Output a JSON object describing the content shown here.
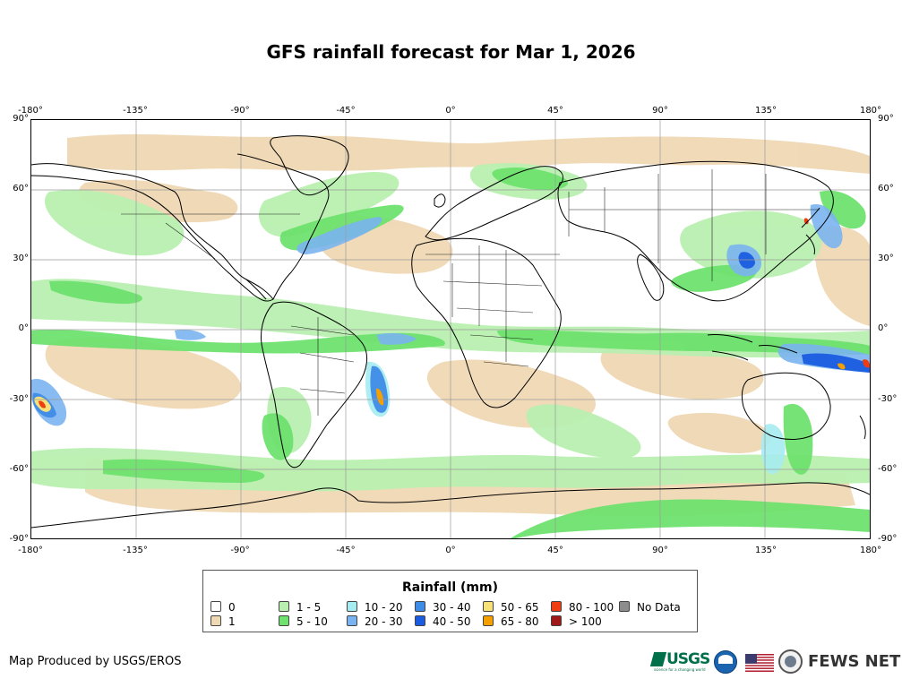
{
  "title": "GFS rainfall forecast for Mar 1, 2026",
  "lon_labels": [
    "-180°",
    "-135°",
    "-90°",
    "-45°",
    "0°",
    "45°",
    "90°",
    "135°",
    "180°"
  ],
  "lat_labels": [
    "90°",
    "60°",
    "30°",
    "0°",
    "-30°",
    "-60°",
    "-90°"
  ],
  "legend": {
    "title": "Rainfall (mm)",
    "items": [
      {
        "label": "0",
        "color": "#ffffff"
      },
      {
        "label": "1",
        "color": "#efd8b4"
      },
      {
        "label": "1 - 5",
        "color": "#b9f0b0"
      },
      {
        "label": "5 - 10",
        "color": "#6ee26e"
      },
      {
        "label": "10 - 20",
        "color": "#a6ecf0"
      },
      {
        "label": "20 - 30",
        "color": "#7ab4f0"
      },
      {
        "label": "30 - 40",
        "color": "#3f8ce6"
      },
      {
        "label": "40 - 50",
        "color": "#1a5ce0"
      },
      {
        "label": "50 - 65",
        "color": "#f7e27a"
      },
      {
        "label": "65 - 80",
        "color": "#f5a000"
      },
      {
        "label": "80 - 100",
        "color": "#ef3c10"
      },
      {
        "label": "> 100",
        "color": "#a01818"
      },
      {
        "label": "No Data",
        "color": "#8c8c8c"
      }
    ]
  },
  "credit": "Map Produced by USGS/EROS",
  "logos": {
    "usgs": "USGS",
    "usgs_tagline": "science for a changing world",
    "fews": "FEWS NET",
    "noaa_icon": "noaa-logo-icon",
    "flag_icon": "us-flag-icon",
    "seal_icon": "state-department-seal-icon"
  },
  "map_features": {
    "ocean_color": "#ffffff",
    "rain_bands": [
      {
        "name": "ITCZ Pacific",
        "color": "#6ee26e"
      },
      {
        "name": "South Atlantic convergence",
        "color": "#3f8ce6"
      },
      {
        "name": "Southern Ocean storm track",
        "color": "#b9f0b0"
      },
      {
        "name": "North Pacific storm track",
        "color": "#6ee26e"
      },
      {
        "name": "North Atlantic storm track",
        "color": "#7ab4f0"
      },
      {
        "name": "Maritime Continent",
        "color": "#1a5ce0"
      }
    ]
  }
}
